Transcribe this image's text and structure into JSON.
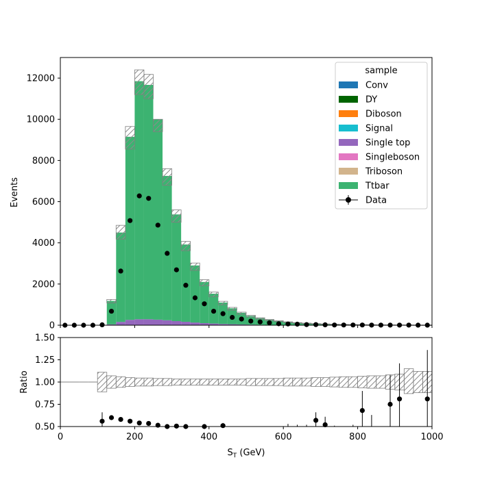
{
  "chart_data": [
    {
      "type": "stacked-step-histogram",
      "ylabel": "Events",
      "xlim": [
        0,
        1000
      ],
      "ylim": [
        0,
        13000
      ],
      "yticks": [
        0,
        2000,
        4000,
        6000,
        8000,
        10000,
        12000
      ],
      "bin_edges": [
        0,
        25,
        50,
        75,
        100,
        125,
        150,
        175,
        200,
        225,
        250,
        275,
        300,
        325,
        350,
        375,
        400,
        425,
        450,
        475,
        500,
        525,
        550,
        575,
        600,
        625,
        650,
        675,
        700,
        725,
        750,
        775,
        800,
        825,
        850,
        875,
        900,
        925,
        950,
        975,
        1000
      ],
      "legend": {
        "title": "sample",
        "placement": "upper right",
        "entries": [
          {
            "label": "Conv",
            "color": "#1f77b4",
            "marker": "patch"
          },
          {
            "label": "DY",
            "color": "#006400",
            "marker": "patch"
          },
          {
            "label": "Diboson",
            "color": "#ff7f0e",
            "marker": "patch"
          },
          {
            "label": "Signal",
            "color": "#17becf",
            "marker": "patch"
          },
          {
            "label": "Single top",
            "color": "#9467bd",
            "marker": "patch"
          },
          {
            "label": "Singleboson",
            "color": "#e377c2",
            "marker": "patch"
          },
          {
            "label": "Triboson",
            "color": "#d2b48c",
            "marker": "patch"
          },
          {
            "label": "Ttbar",
            "color": "#3cb371",
            "marker": "patch"
          },
          {
            "label": "Data",
            "color": "#000000",
            "marker": "errorbar-point"
          }
        ]
      },
      "series": [
        {
          "name": "Single top",
          "color": "#9467bd",
          "values": [
            0,
            0,
            0,
            0,
            0,
            40,
            160,
            260,
            290,
            290,
            270,
            240,
            200,
            165,
            130,
            100,
            80,
            60,
            48,
            36,
            28,
            22,
            16,
            12,
            9,
            7,
            5,
            4,
            3,
            3,
            2,
            2,
            1,
            1,
            1,
            1,
            1,
            1,
            0,
            0
          ]
        },
        {
          "name": "Ttbar",
          "color": "#3cb371",
          "values": [
            0,
            0,
            0,
            0,
            0,
            1140,
            4340,
            8890,
            11560,
            11380,
            9730,
            7010,
            5180,
            3755,
            2770,
            2000,
            1450,
            1040,
            772,
            564,
            422,
            318,
            244,
            188,
            141,
            108,
            85,
            66,
            52,
            42,
            33,
            27,
            22,
            18,
            14,
            11,
            9,
            7,
            6,
            5
          ]
        }
      ],
      "mc_uncertainty": {
        "down": [
          0,
          0,
          0,
          0,
          0,
          1080,
          4180,
          8550,
          11200,
          11000,
          9400,
          6800,
          5000,
          3620,
          2660,
          1910,
          1380,
          990,
          730,
          530,
          396,
          298,
          228,
          175,
          131,
          100,
          78,
          60,
          47,
          38,
          30,
          24,
          19,
          16,
          12,
          10,
          8,
          6,
          5,
          4
        ],
        "up": [
          0,
          0,
          0,
          0,
          0,
          1250,
          4850,
          9650,
          12400,
          12180,
          10000,
          7600,
          5600,
          4070,
          3020,
          2210,
          1610,
          1160,
          865,
          634,
          478,
          362,
          280,
          217,
          164,
          127,
          101,
          79,
          63,
          51,
          41,
          34,
          28,
          23,
          18,
          14,
          12,
          10,
          8,
          7
        ]
      },
      "data_points": {
        "name": "Data",
        "x": [
          12.5,
          37.5,
          62.5,
          87.5,
          112.5,
          137.5,
          162.5,
          187.5,
          212.5,
          237.5,
          262.5,
          287.5,
          312.5,
          337.5,
          362.5,
          387.5,
          412.5,
          437.5,
          462.5,
          487.5,
          512.5,
          537.5,
          562.5,
          587.5,
          612.5,
          637.5,
          662.5,
          687.5,
          712.5,
          737.5,
          762.5,
          787.5,
          812.5,
          837.5,
          862.5,
          887.5,
          912.5,
          937.5,
          962.5,
          987.5
        ],
        "y": [
          0,
          0,
          0,
          0,
          20,
          680,
          2630,
          5080,
          6280,
          6160,
          4860,
          3490,
          2690,
          1940,
          1330,
          1040,
          680,
          560,
          380,
          300,
          200,
          160,
          120,
          70,
          60,
          50,
          30,
          30,
          20,
          10,
          10,
          10,
          10,
          5,
          5,
          5,
          5,
          5,
          3,
          3
        ]
      }
    },
    {
      "type": "ratio",
      "xlabel": "S_T (GeV)",
      "ylabel": "Ratio",
      "xlim": [
        0,
        1000
      ],
      "ylim": [
        0.5,
        1.5
      ],
      "xticks": [
        0,
        200,
        400,
        600,
        800,
        1000
      ],
      "yticks": [
        "0.50",
        "0.75",
        "1.00",
        "1.25",
        "1.50"
      ],
      "uncertainty_band": {
        "low": [
          1.0,
          1.0,
          1.0,
          1.0,
          0.89,
          0.93,
          0.94,
          0.95,
          0.955,
          0.955,
          0.96,
          0.96,
          0.965,
          0.965,
          0.965,
          0.965,
          0.965,
          0.965,
          0.965,
          0.965,
          0.96,
          0.96,
          0.96,
          0.96,
          0.955,
          0.955,
          0.955,
          0.95,
          0.95,
          0.945,
          0.94,
          0.94,
          0.935,
          0.93,
          0.93,
          0.92,
          0.91,
          0.87,
          0.88,
          0.88
        ],
        "high": [
          1.0,
          1.0,
          1.0,
          1.0,
          1.11,
          1.07,
          1.06,
          1.05,
          1.045,
          1.045,
          1.04,
          1.04,
          1.035,
          1.035,
          1.035,
          1.035,
          1.035,
          1.035,
          1.035,
          1.035,
          1.04,
          1.04,
          1.04,
          1.04,
          1.045,
          1.045,
          1.045,
          1.05,
          1.05,
          1.055,
          1.06,
          1.06,
          1.065,
          1.07,
          1.07,
          1.08,
          1.09,
          1.15,
          1.12,
          1.12
        ]
      },
      "points": {
        "x": [
          112.5,
          137.5,
          162.5,
          187.5,
          212.5,
          237.5,
          262.5,
          287.5,
          312.5,
          337.5,
          387.5,
          437.5,
          687.5,
          712.5,
          812.5,
          887.5,
          912.5,
          987.5
        ],
        "y": [
          0.56,
          0.6,
          0.58,
          0.56,
          0.54,
          0.535,
          0.515,
          0.5,
          0.505,
          0.5,
          0.5,
          0.51,
          0.57,
          0.52,
          0.68,
          0.75,
          0.81,
          0.81
        ],
        "err": [
          0.1,
          0.02,
          0.015,
          0.01,
          0.01,
          0.01,
          0.01,
          0.01,
          0.012,
          0.015,
          0.02,
          0.03,
          0.09,
          0.09,
          0.22,
          0.33,
          0.4,
          0.55
        ]
      },
      "offscale_errorbars": [
        {
          "x": 612.5,
          "top": 0.53
        },
        {
          "x": 637.5,
          "top": 0.52
        },
        {
          "x": 662.5,
          "top": 0.52
        },
        {
          "x": 737.5,
          "top": 0.51
        },
        {
          "x": 787.5,
          "top": 0.52
        },
        {
          "x": 837.5,
          "top": 0.63
        }
      ]
    }
  ]
}
